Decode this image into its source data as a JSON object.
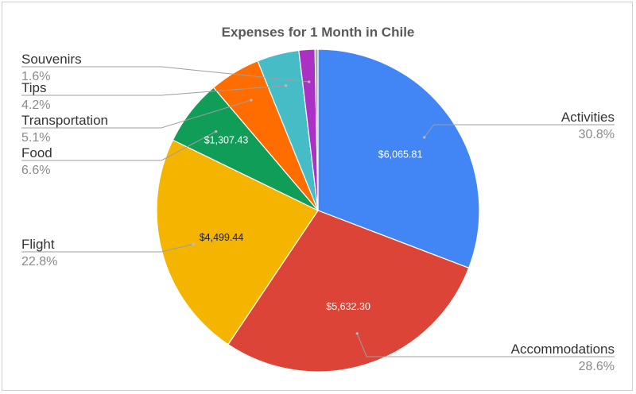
{
  "chart_data": {
    "type": "pie",
    "title": "Expenses for 1 Month in Chile",
    "start_angle_deg": 0,
    "direction": "clockwise",
    "legend": "labeled slices (outside labels with leader lines)",
    "slices": [
      {
        "name": "Activities",
        "percent_label": "30.8%",
        "percent": 30.8,
        "value_label": "$6,065.81",
        "value": 6065.81,
        "color": "#4285F4",
        "value_text_color": "#ffffff"
      },
      {
        "name": "Accommodations",
        "percent_label": "28.6%",
        "percent": 28.6,
        "value_label": "$5,632.30",
        "value": 5632.3,
        "color": "#DB4437",
        "value_text_color": "#ffffff"
      },
      {
        "name": "Flight",
        "percent_label": "22.8%",
        "percent": 22.8,
        "value_label": "$4,499.44",
        "value": 4499.44,
        "color": "#F4B400",
        "value_text_color": "#222222"
      },
      {
        "name": "Food",
        "percent_label": "6.6%",
        "percent": 6.6,
        "value_label": "$1,307.43",
        "value": 1307.43,
        "color": "#0F9D58",
        "value_text_color": "#ffffff"
      },
      {
        "name": "Transportation",
        "percent_label": "5.1%",
        "percent": 5.1,
        "value_label": "",
        "value": null,
        "color": "#FF6D00",
        "value_text_color": "#ffffff"
      },
      {
        "name": "Tips",
        "percent_label": "4.2%",
        "percent": 4.2,
        "value_label": "",
        "value": null,
        "color": "#46BDC6",
        "value_text_color": "#ffffff"
      },
      {
        "name": "Souvenirs",
        "percent_label": "1.6%",
        "percent": 1.6,
        "value_label": "",
        "value": null,
        "color": "#AB30C4",
        "value_text_color": "#ffffff"
      },
      {
        "name": "",
        "percent_label": "",
        "percent": 0.3,
        "value_label": "",
        "value": null,
        "color": "#AAAAAA",
        "value_text_color": "#ffffff"
      }
    ]
  }
}
